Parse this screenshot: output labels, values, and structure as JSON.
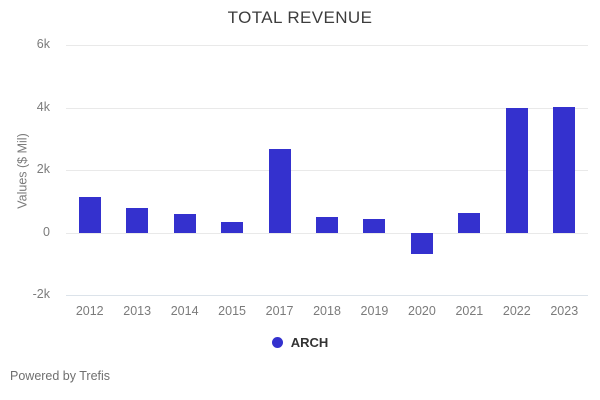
{
  "chart": {
    "title": "TOTAL REVENUE",
    "y_axis_title": "Values ($ Mil)"
  },
  "legend": {
    "series_label": "ARCH"
  },
  "footer": {
    "text": "Powered by Trefis"
  },
  "colors": {
    "bar": "#3431ce",
    "grid": "#e9e9e9",
    "axis_line": "#dce3ea",
    "tick_text": "#7b7b7b",
    "title_text": "#3d3d3d",
    "legend_text": "#333333",
    "footer_text": "#6f6f6f"
  },
  "chart_data": {
    "type": "bar",
    "title": "TOTAL REVENUE",
    "xlabel": "",
    "ylabel": "Values ($ Mil)",
    "categories": [
      "2012",
      "2013",
      "2014",
      "2015",
      "2017",
      "2018",
      "2019",
      "2020",
      "2021",
      "2022",
      "2023"
    ],
    "series": [
      {
        "name": "ARCH",
        "values": [
          1150,
          780,
          600,
          350,
          2680,
          510,
          420,
          -700,
          630,
          3970,
          4020
        ]
      }
    ],
    "ylim": [
      -2000,
      6000
    ],
    "yticks": [
      {
        "value": 6000,
        "label": "6k"
      },
      {
        "value": 4000,
        "label": "4k"
      },
      {
        "value": 2000,
        "label": "2k"
      },
      {
        "value": 0,
        "label": "0"
      },
      {
        "value": -2000,
        "label": "-2k"
      }
    ],
    "grid": true,
    "legend_position": "bottom"
  }
}
